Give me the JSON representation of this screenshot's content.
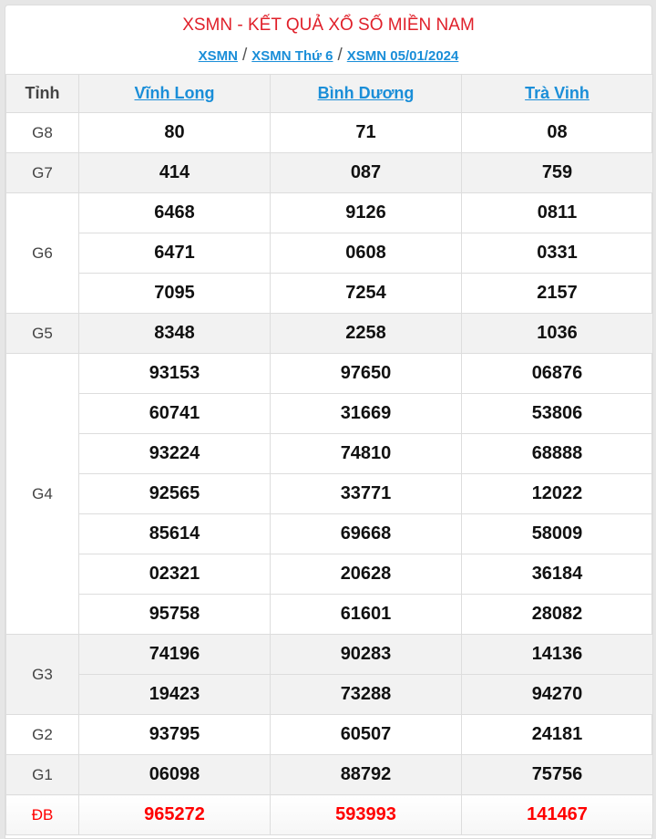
{
  "header": {
    "title": "XSMN - KẾT QUẢ XỔ SỐ MIỀN NAM",
    "breadcrumbs": [
      "XSMN",
      "XSMN Thứ 6",
      "XSMN 05/01/2024"
    ],
    "separator": "/"
  },
  "table": {
    "label_header": "Tỉnh",
    "provinces": [
      "Vĩnh Long",
      "Bình Dương",
      "Trà Vinh"
    ],
    "prizes": [
      {
        "label": "G8",
        "rows": [
          [
            "80",
            "71",
            "08"
          ]
        ]
      },
      {
        "label": "G7",
        "rows": [
          [
            "414",
            "087",
            "759"
          ]
        ]
      },
      {
        "label": "G6",
        "rows": [
          [
            "6468",
            "9126",
            "0811"
          ],
          [
            "6471",
            "0608",
            "0331"
          ],
          [
            "7095",
            "7254",
            "2157"
          ]
        ]
      },
      {
        "label": "G5",
        "rows": [
          [
            "8348",
            "2258",
            "1036"
          ]
        ]
      },
      {
        "label": "G4",
        "rows": [
          [
            "93153",
            "97650",
            "06876"
          ],
          [
            "60741",
            "31669",
            "53806"
          ],
          [
            "93224",
            "74810",
            "68888"
          ],
          [
            "92565",
            "33771",
            "12022"
          ],
          [
            "85614",
            "69668",
            "58009"
          ],
          [
            "02321",
            "20628",
            "36184"
          ],
          [
            "95758",
            "61601",
            "28082"
          ]
        ]
      },
      {
        "label": "G3",
        "rows": [
          [
            "74196",
            "90283",
            "14136"
          ],
          [
            "19423",
            "73288",
            "94270"
          ]
        ]
      },
      {
        "label": "G2",
        "rows": [
          [
            "93795",
            "60507",
            "24181"
          ]
        ]
      },
      {
        "label": "G1",
        "rows": [
          [
            "06098",
            "88792",
            "75756"
          ]
        ]
      },
      {
        "label": "ĐB",
        "rows": [
          [
            "965272",
            "593993",
            "141467"
          ]
        ]
      }
    ]
  },
  "colors": {
    "title": "#e0202a",
    "link": "#1a8ed8",
    "special": "#ff0000"
  }
}
